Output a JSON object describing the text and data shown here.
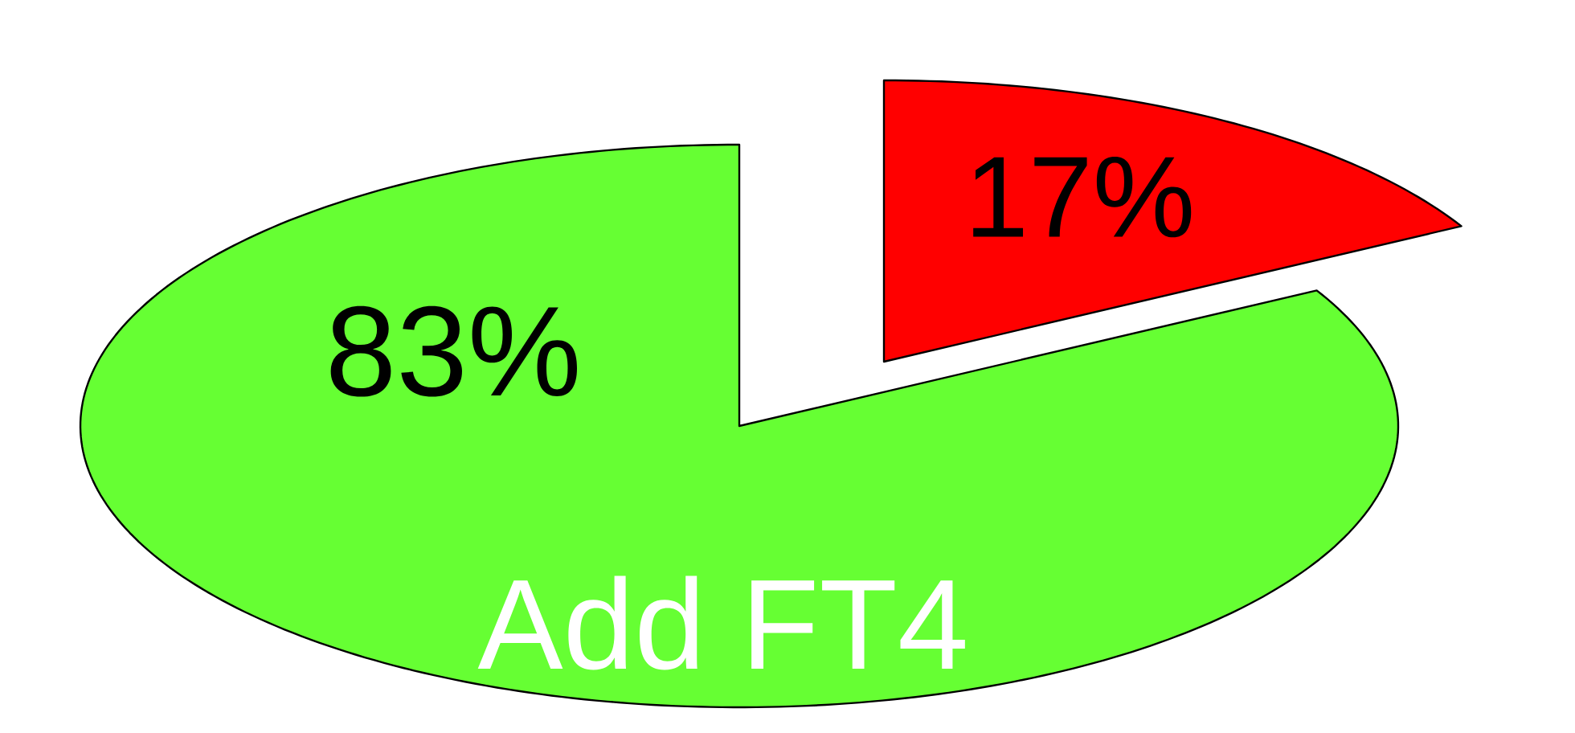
{
  "chart_data": {
    "type": "pie",
    "categories": [
      null,
      "Add FT4"
    ],
    "values": [
      17,
      83
    ],
    "colors": [
      "#ff0000",
      "#66ff33"
    ],
    "value_labels": [
      "17%",
      "83%"
    ]
  }
}
